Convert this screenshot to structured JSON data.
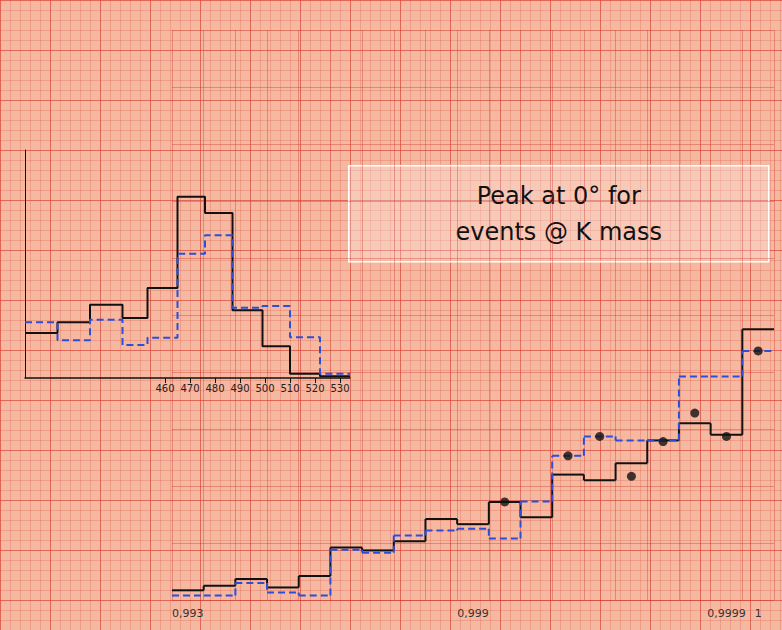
{
  "chart_data": [
    {
      "type": "line",
      "categories": [
        "0,993",
        null,
        null,
        null,
        null,
        null,
        null,
        null,
        null,
        "0,999",
        null,
        null,
        null,
        null,
        null,
        null,
        null,
        "0,9999",
        "1"
      ],
      "series": [
        {
          "type": "step",
          "color": "#111111",
          "line_style": "solid",
          "values": [
            1.7,
            2.5,
            3.7,
            2.2,
            4.2,
            9.2,
            8.7,
            10.3,
            14.2,
            13.3,
            17.2,
            14.5,
            22.0,
            21.0,
            24.0,
            28.0,
            31.0,
            29.0,
            47.5
          ]
        },
        {
          "type": "step",
          "color": "#2b4fd8",
          "line_style": "dashed",
          "values": [
            0.8,
            0.8,
            3.0,
            1.3,
            0.8,
            8.8,
            8.3,
            11.3,
            12.2,
            12.5,
            10.8,
            17.3,
            25.3,
            28.7,
            28.0,
            28.0,
            39.2,
            39.2,
            43.7
          ]
        },
        {
          "type": "scatter",
          "color": "#111111",
          "marker": "circle",
          "values": [
            null,
            null,
            null,
            null,
            null,
            null,
            null,
            null,
            null,
            null,
            17.2,
            null,
            25.3,
            28.7,
            21.7,
            27.8,
            32.8,
            28.7,
            43.7
          ]
        }
      ],
      "ylim": [
        0,
        100
      ],
      "yticks": [
        0,
        10,
        20,
        30,
        40,
        50,
        60,
        70,
        80,
        90,
        100
      ],
      "grid": true,
      "tick_labels": "x",
      "annotation": [
        "Peak at 0° for",
        "events @ K mass"
      ]
    },
    {
      "type": "histogram",
      "bins": [
        404,
        417,
        430,
        443,
        453,
        465,
        476,
        487,
        499,
        510,
        522,
        534
      ],
      "series": [
        {
          "type": "step",
          "color": "#111111",
          "line_style": "solid",
          "values": [
            7.5,
            9.3,
            12.2,
            10.0,
            15.0,
            30.2,
            27.5,
            11.3,
            5.3,
            0.7,
            0.3
          ]
        },
        {
          "type": "step",
          "color": "#2b4fd8",
          "line_style": "dashed",
          "values": [
            9.3,
            6.3,
            9.7,
            5.5,
            6.7,
            20.7,
            23.8,
            11.7,
            12.0,
            6.8,
            0.7
          ]
        }
      ],
      "xlim": [
        404,
        534
      ],
      "xticks": [
        460,
        470,
        480,
        490,
        500,
        510,
        520,
        530
      ],
      "ylim": [
        0,
        38
      ],
      "grid": false,
      "tick_labels": "x"
    }
  ]
}
